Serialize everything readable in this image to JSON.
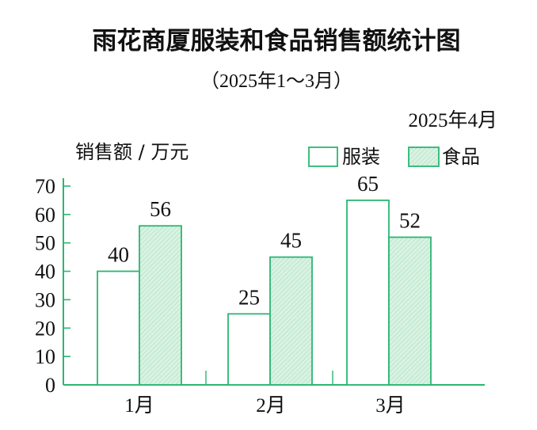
{
  "chart_data": {
    "type": "bar",
    "title": "雨花商厦服装和食品销售额统计图",
    "subtitle": "（2025年1～3月）",
    "date": "2025年4月",
    "ylabel": "销售额 / 万元",
    "xlabel": "",
    "categories": [
      "1月",
      "2月",
      "3月"
    ],
    "series": [
      {
        "name": "服装",
        "values": [
          40,
          25,
          65
        ],
        "fill": "#ffffff",
        "stroke": "#2bb673"
      },
      {
        "name": "食品",
        "values": [
          56,
          45,
          52
        ],
        "fill": "#d9f2e2",
        "stroke": "#2bb673",
        "pattern": "hatched"
      }
    ],
    "ylim": [
      0,
      70
    ],
    "yticks": [
      0,
      10,
      20,
      30,
      40,
      50,
      60,
      70
    ],
    "legend_position": "top-right",
    "grid": false,
    "accent_color": "#2bb673"
  }
}
